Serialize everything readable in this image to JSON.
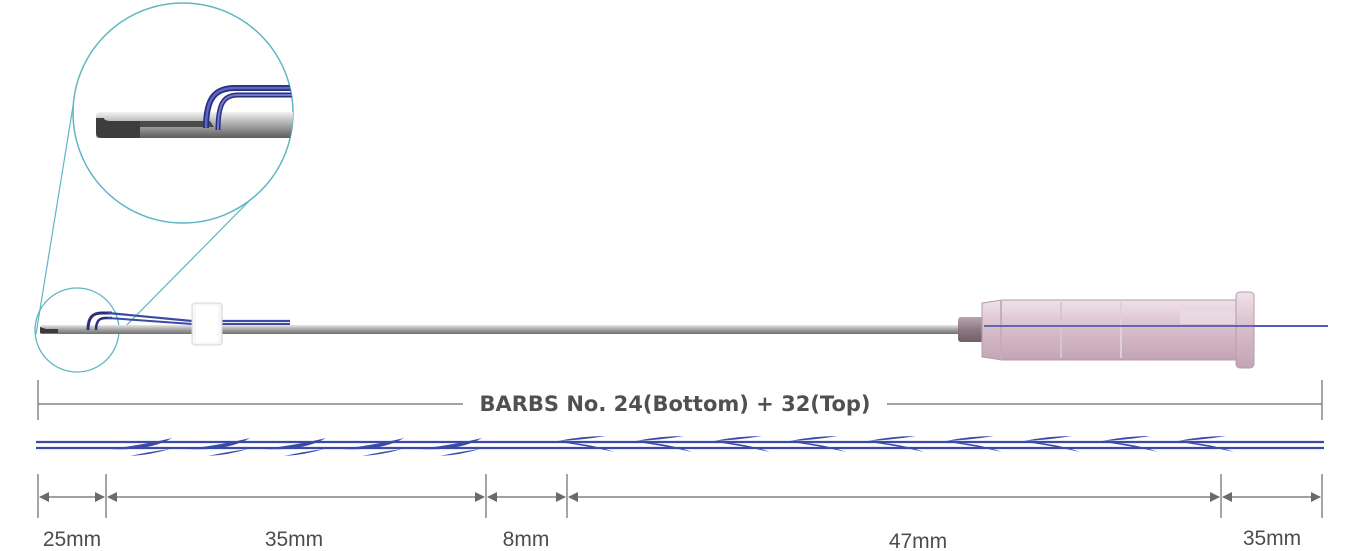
{
  "product_title": "BARBS No. 24(Bottom) + 32(Top)",
  "segments": [
    {
      "label": "25mm"
    },
    {
      "label": "35mm"
    },
    {
      "label": "8mm"
    },
    {
      "label": "47mm"
    },
    {
      "label": "35mm"
    }
  ],
  "colors": {
    "thread": "#3a4aa6",
    "cannula": "#9a9a9a",
    "hub": "#dcc3cf",
    "dimension_line": "#6b6b6b",
    "magnifier_circle": "#5fb5c4"
  }
}
